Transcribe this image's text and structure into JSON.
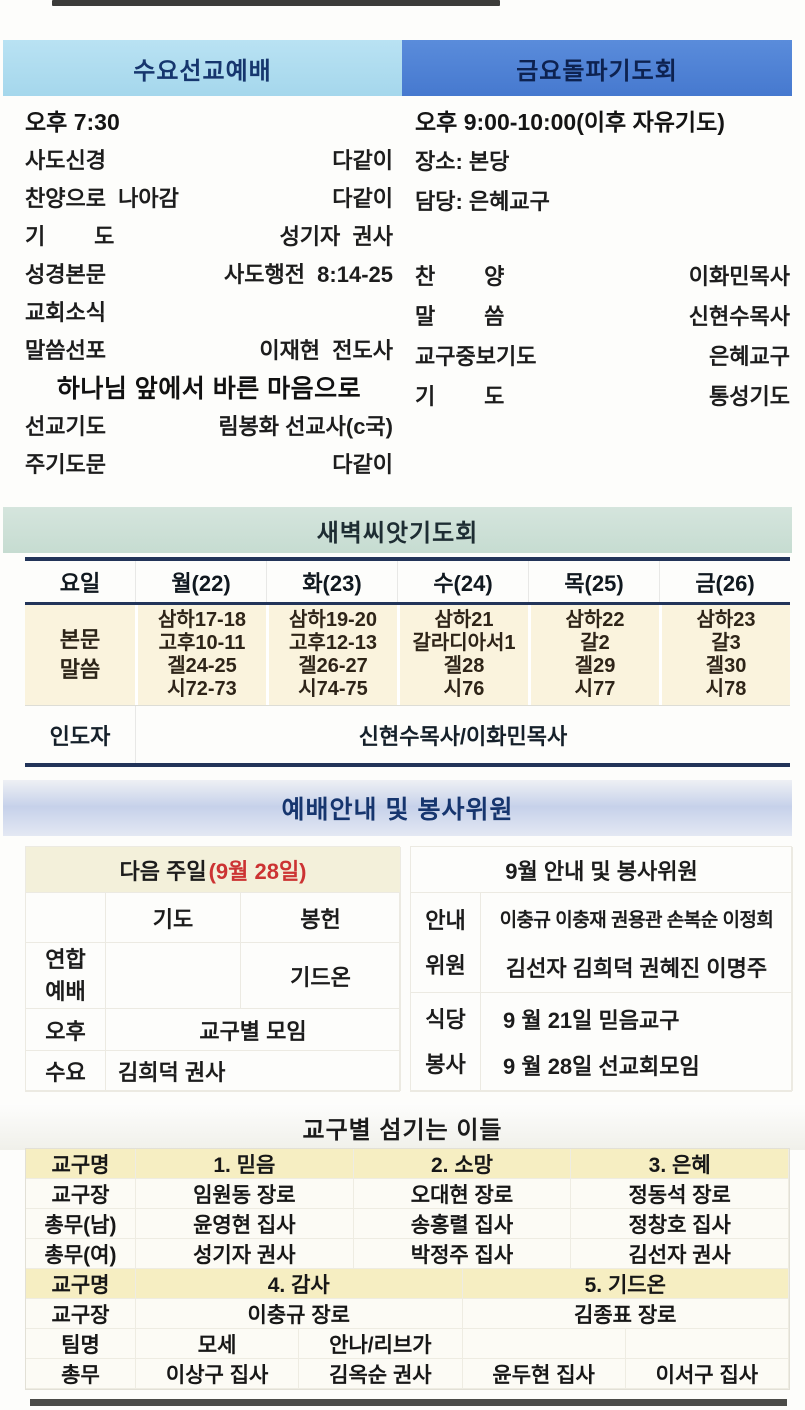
{
  "wednesday": {
    "title": "수요선교예배",
    "time": "오후 7:30",
    "items": [
      {
        "label": "사도신경",
        "value": "다같이"
      },
      {
        "label": "찬양으로  나아감",
        "value": "다같이"
      },
      {
        "label": "기        도",
        "value": "성기자  권사"
      },
      {
        "label": "성경본문",
        "value": "사도행전  8:14-25"
      },
      {
        "label": "교회소식",
        "value": ""
      },
      {
        "label": "말씀선포",
        "value": "이재현  전도사"
      }
    ],
    "sermon_title": "하나님 앞에서 바른 마음으로",
    "items2": [
      {
        "label": "선교기도",
        "value": "림봉화 선교사(c국)"
      },
      {
        "label": "주기도문",
        "value": "다같이"
      }
    ]
  },
  "friday": {
    "title": "금요돌파기도회",
    "time": "오후 9:00-10:00(이후 자유기도)",
    "place": "장소: 본당",
    "duty": "담당: 은혜교구",
    "items": [
      {
        "label": "찬        양",
        "value": "이화민목사"
      },
      {
        "label": "말        씀",
        "value": "신현수목사"
      },
      {
        "label": "교구중보기도",
        "value": "은혜교구"
      },
      {
        "label": "기        도",
        "value": "통성기도"
      }
    ]
  },
  "dawn": {
    "title": "새벽씨앗기도회",
    "day_header": "요일",
    "days": [
      "월(22)",
      "화(23)",
      "수(24)",
      "목(25)",
      "금(26)"
    ],
    "row_label": "본문\n말씀",
    "readings": [
      [
        "삼하17-18",
        "고후10-11",
        "겔24-25",
        "시72-73"
      ],
      [
        "삼하19-20",
        "고후12-13",
        "겔26-27",
        "시74-75"
      ],
      [
        "삼하21",
        "갈라디아서1",
        "겔28",
        "시76"
      ],
      [
        "삼하22",
        "갈2",
        "겔29",
        "시77"
      ],
      [
        "삼하23",
        "갈3",
        "겔30",
        "시78"
      ]
    ],
    "leader_label": "인도자",
    "leader": "신현수목사/이화민목사"
  },
  "service": {
    "title": "예배안내 및 봉사위원",
    "next_sunday_label": "다음 주일",
    "next_sunday_date": "(9월 28일)",
    "left": {
      "prayer_header": "기도",
      "offering_header": "봉헌",
      "union_label": "연합\n예배",
      "union_value": "기드온",
      "afternoon_label": "오후",
      "afternoon_value": "교구별 모임",
      "wednesday_label": "수요",
      "wednesday_value": "김희덕 권사"
    },
    "right": {
      "title": "9월 안내 및 봉사위원",
      "guide_label": "안내\n위원",
      "guide_line1": "이충규 이충재 권용관 손복순 이정희",
      "guide_line2": "김선자 김희덕 권혜진 이명주",
      "dining_label": "식당\n봉사",
      "dining_line1": "9 월 21일 믿음교구",
      "dining_line2": "9 월 28일 선교회모임"
    }
  },
  "parish": {
    "title": "교구별 섬기는 이들",
    "table1": {
      "headers": [
        "교구명",
        "1. 믿음",
        "2. 소망",
        "3. 은혜"
      ],
      "rows": [
        [
          "교구장",
          "임원동 장로",
          "오대현 장로",
          "정동석 장로"
        ],
        [
          "총무(남)",
          "윤영현 집사",
          "송홍렬 집사",
          "정창호 집사"
        ],
        [
          "총무(여)",
          "성기자 권사",
          "박정주 집사",
          "김선자 권사"
        ]
      ]
    },
    "table2": {
      "headers": [
        "교구명",
        "4. 감사",
        "5. 기드온"
      ],
      "chief_row": [
        "교구장",
        "이충규 장로",
        "김종표 장로"
      ],
      "team_row": [
        "팀명",
        "모세",
        "안나/리브가",
        "",
        ""
      ],
      "secretary_row": [
        "총무",
        "이상구 집사",
        "김옥순 권사",
        "윤두현 집사",
        "이서구 집사"
      ]
    }
  }
}
